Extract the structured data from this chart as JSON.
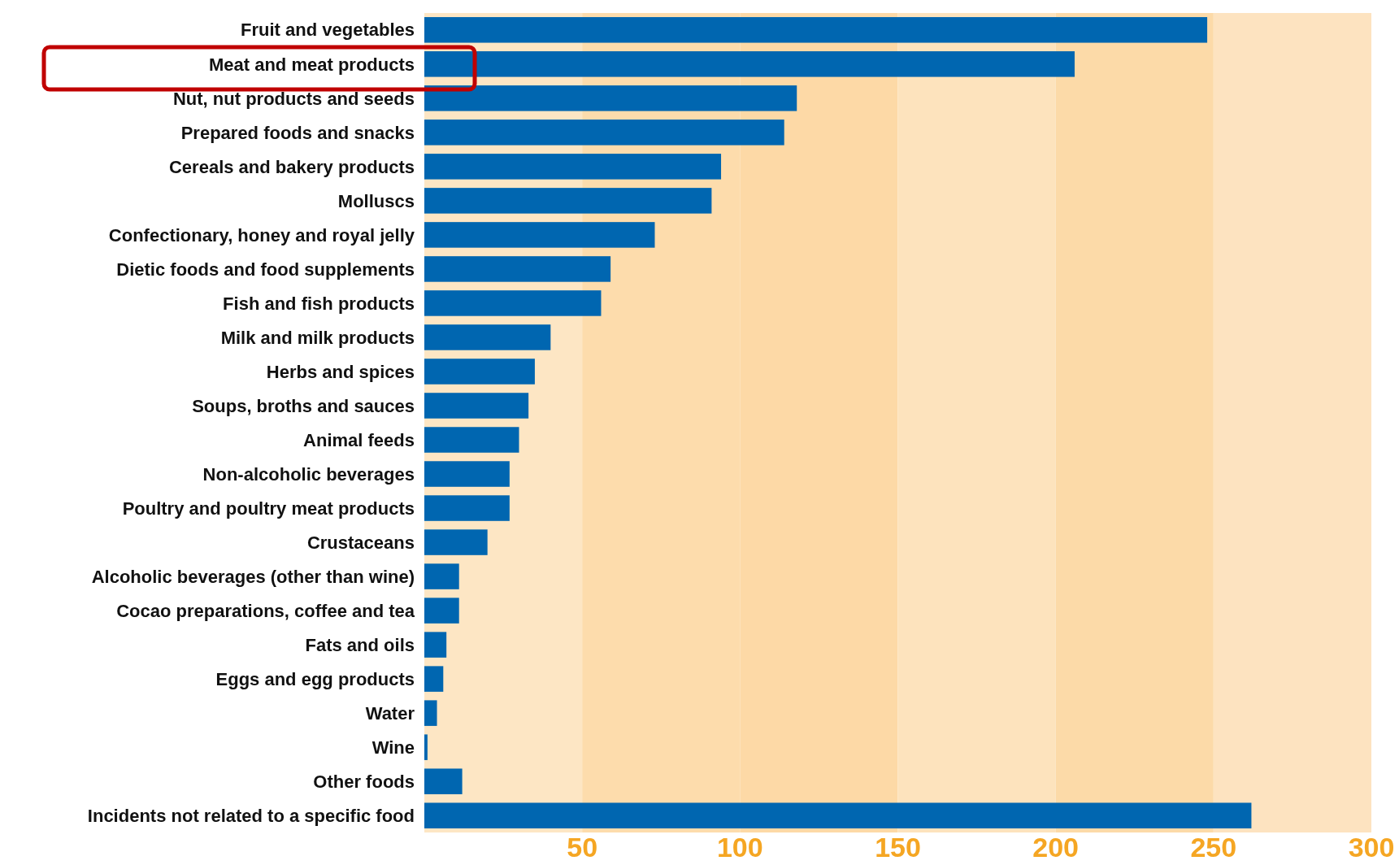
{
  "chart_data": {
    "type": "bar",
    "orientation": "horizontal",
    "categories": [
      "Fruit and vegetables",
      "Meat and meat products",
      "Nut, nut products and seeds",
      "Prepared foods and snacks",
      "Cereals and bakery products",
      "Molluscs",
      "Confectionary, honey and royal jelly",
      "Dietic foods and food supplements",
      "Fish and fish products",
      "Milk and milk products",
      "Herbs and spices",
      "Soups, broths and sauces",
      "Animal feeds",
      "Non-alcoholic beverages",
      "Poultry and poultry meat products",
      "Crustaceans",
      "Alcoholic beverages (other than wine)",
      "Cocao preparations, coffee and tea",
      "Fats and oils",
      "Eggs and egg products",
      "Water",
      "Wine",
      "Other foods",
      "Incidents not related to a specific food"
    ],
    "values": [
      248,
      206,
      118,
      114,
      94,
      91,
      73,
      59,
      56,
      40,
      35,
      33,
      30,
      27,
      27,
      20,
      11,
      11,
      7,
      6,
      4,
      1,
      12,
      262
    ],
    "color": "#0066b0",
    "xlim": [
      0,
      300
    ],
    "xticks": [
      50,
      100,
      150,
      200,
      250,
      300
    ],
    "bands": [
      {
        "axis": "x",
        "from": 0,
        "to": 50,
        "color": "#fde6c4"
      },
      {
        "axis": "x",
        "from": 50,
        "to": 100,
        "color": "#fddcac"
      },
      {
        "axis": "x",
        "from": 100,
        "to": 150,
        "color": "#fdd9a6"
      },
      {
        "axis": "x",
        "from": 150,
        "to": 200,
        "color": "#fde3bd"
      },
      {
        "axis": "x",
        "from": 200,
        "to": 250,
        "color": "#fcdaa8"
      },
      {
        "axis": "x",
        "from": 250,
        "to": 300,
        "color": "#fde3c0"
      }
    ]
  }
}
